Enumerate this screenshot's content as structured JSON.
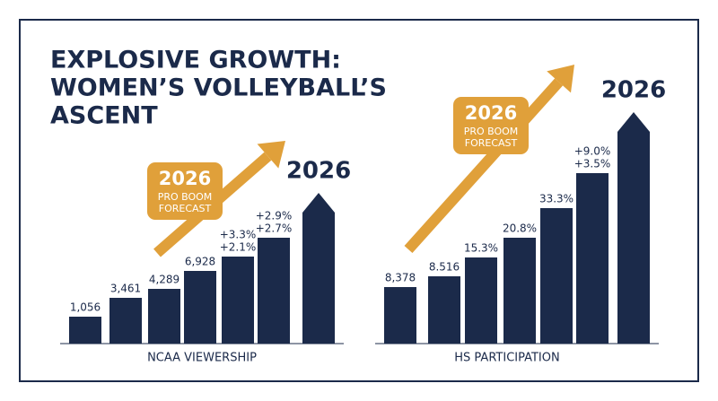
{
  "title": [
    "EXPLOSIVE GROWTH:",
    "WOMEN’S VOLLEYBALL’S",
    "ASCENT"
  ],
  "chart_data": [
    {
      "type": "bar",
      "color": "#1b2a4a",
      "ylim": [
        0,
        270
      ],
      "values": [
        30,
        51,
        61,
        81,
        97,
        118,
        168
      ],
      "bar_labels": [
        [
          "1,056"
        ],
        [
          "3,461"
        ],
        [
          "4,289"
        ],
        [
          "6,928"
        ],
        [
          "+3.3%",
          "+2.1%"
        ],
        [
          "+2.9%",
          "+2.7%"
        ],
        [
          "2026"
        ]
      ],
      "xlabel": "NCAA VIEWERSHIP",
      "badge": {
        "year": "2026",
        "lines": [
          "PRO BOOM",
          "FORECAST"
        ],
        "color": "#e0a03a"
      }
    },
    {
      "type": "bar",
      "color": "#1b2a4a",
      "ylim": [
        0,
        270
      ],
      "values": [
        63,
        75,
        96,
        118,
        151,
        190,
        258
      ],
      "bar_labels": [
        [
          "8,378"
        ],
        [
          "8.516"
        ],
        [
          "15.3%"
        ],
        [
          "20.8%"
        ],
        [
          "33.3%"
        ],
        [
          "+9.0%",
          "+3.5%"
        ],
        [
          "2026"
        ]
      ],
      "xlabel": "HS PARTICIPATION",
      "badge": {
        "year": "2026",
        "lines": [
          "PRO BOOM",
          "FORECAST"
        ],
        "color": "#e0a03a"
      }
    }
  ]
}
